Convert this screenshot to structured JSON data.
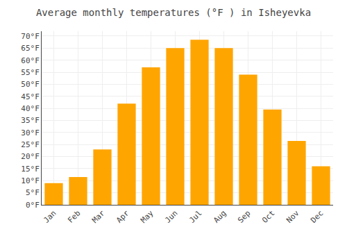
{
  "chart_data": {
    "type": "bar",
    "title": "Average monthly temperatures (°F ) in Isheyevka",
    "categories": [
      "Jan",
      "Feb",
      "Mar",
      "Apr",
      "May",
      "Jun",
      "Jul",
      "Aug",
      "Sep",
      "Oct",
      "Nov",
      "Dec"
    ],
    "values": [
      9,
      11.5,
      23,
      42,
      57,
      65,
      68.5,
      65,
      54,
      39.5,
      26.5,
      16
    ],
    "color": "#FFA500",
    "ylim": [
      0,
      72
    ],
    "yticks": [
      {
        "value": 0,
        "label": "0°F"
      },
      {
        "value": 5,
        "label": "5°F"
      },
      {
        "value": 10,
        "label": "10°F"
      },
      {
        "value": 15,
        "label": "15°F"
      },
      {
        "value": 20,
        "label": "20°F"
      },
      {
        "value": 25,
        "label": "25°F"
      },
      {
        "value": 30,
        "label": "30°F"
      },
      {
        "value": 35,
        "label": "35°F"
      },
      {
        "value": 40,
        "label": "40°F"
      },
      {
        "value": 45,
        "label": "45°F"
      },
      {
        "value": 50,
        "label": "50°F"
      },
      {
        "value": 55,
        "label": "55°F"
      },
      {
        "value": 60,
        "label": "60°F"
      },
      {
        "value": 65,
        "label": "65°F"
      },
      {
        "value": 70,
        "label": "70°F"
      }
    ],
    "grid": true
  }
}
